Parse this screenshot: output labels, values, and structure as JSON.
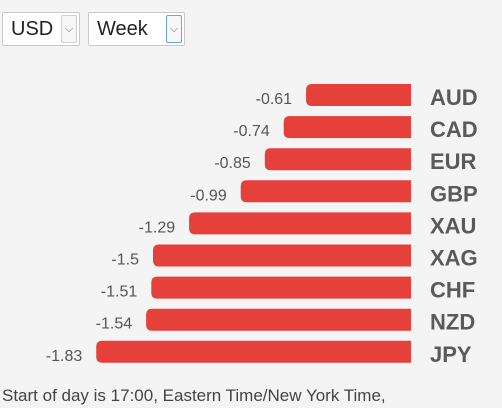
{
  "controls": {
    "currency": "USD",
    "period": "Week"
  },
  "chart_data": {
    "type": "bar",
    "orientation": "horizontal",
    "categories": [
      "AUD",
      "CAD",
      "EUR",
      "GBP",
      "XAU",
      "XAG",
      "CHF",
      "NZD",
      "JPY"
    ],
    "values": [
      -0.61,
      -0.74,
      -0.85,
      -0.99,
      -1.29,
      -1.5,
      -1.51,
      -1.54,
      -1.83
    ],
    "value_labels": [
      "-0.61",
      "-0.74",
      "-0.85",
      "-0.99",
      "-1.29",
      "-1.5",
      "-1.51",
      "-1.54",
      "-1.83"
    ],
    "bar_color": "#e5403a",
    "title": "",
    "xlabel": "",
    "ylabel": ""
  },
  "footer": {
    "note": "Start of day is 17:00, Eastern Time/New York Time,"
  }
}
